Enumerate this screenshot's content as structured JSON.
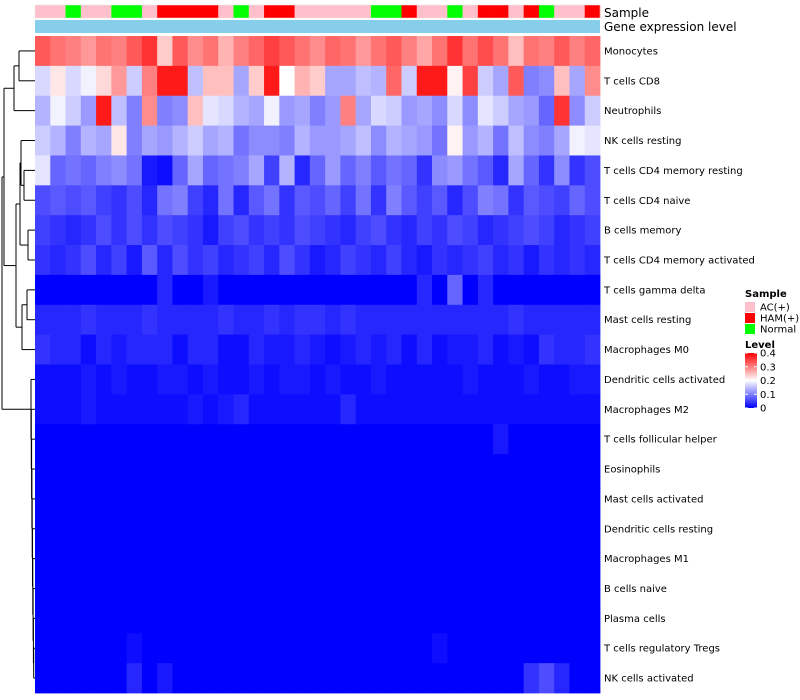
{
  "chart_data": {
    "type": "heatmap",
    "title": "",
    "annotation_labels": [
      "Sample",
      "Gene expression level"
    ],
    "sample_groups": [
      "AC(+)",
      "AC(+)",
      "Normal",
      "AC(+)",
      "AC(+)",
      "Normal",
      "Normal",
      "AC(+)",
      "HAM(+)",
      "HAM(+)",
      "HAM(+)",
      "HAM(+)",
      "AC(+)",
      "Normal",
      "AC(+)",
      "HAM(+)",
      "HAM(+)",
      "AC(+)",
      "AC(+)",
      "AC(+)",
      "AC(+)",
      "AC(+)",
      "Normal",
      "Normal",
      "HAM(+)",
      "AC(+)",
      "AC(+)",
      "Normal",
      "AC(+)",
      "HAM(+)",
      "HAM(+)",
      "AC(+)",
      "HAM(+)",
      "Normal",
      "AC(+)",
      "AC(+)",
      "HAM(+)"
    ],
    "rows": [
      "Monocytes",
      "T cells CD8",
      "Neutrophils",
      "NK cells resting",
      "T cells CD4 memory resting",
      "T cells CD4 naive",
      "B cells memory",
      "T cells CD4 memory activated",
      "T cells gamma delta",
      "Mast cells resting",
      "Macrophages M0",
      "Dendritic cells activated",
      "Macrophages M2",
      "T cells follicular helper",
      "Eosinophils",
      "Mast cells activated",
      "Dendritic cells resting",
      "Macrophages M1",
      "B cells naive",
      "Plasma cells",
      "T cells regulatory  Tregs",
      "NK cells activated"
    ],
    "values": [
      [
        0.33,
        0.31,
        0.3,
        0.28,
        0.31,
        0.3,
        0.33,
        0.36,
        0.24,
        0.33,
        0.29,
        0.31,
        0.26,
        0.3,
        0.32,
        0.35,
        0.33,
        0.31,
        0.29,
        0.32,
        0.31,
        0.28,
        0.31,
        0.33,
        0.3,
        0.27,
        0.31,
        0.36,
        0.31,
        0.34,
        0.31,
        0.25,
        0.31,
        0.3,
        0.33,
        0.3,
        0.32
      ],
      [
        0.17,
        0.22,
        0.17,
        0.19,
        0.23,
        0.28,
        0.16,
        0.3,
        0.38,
        0.38,
        0.15,
        0.25,
        0.25,
        0.13,
        0.24,
        0.38,
        0.2,
        0.26,
        0.24,
        0.13,
        0.13,
        0.15,
        0.14,
        0.32,
        0.16,
        0.38,
        0.38,
        0.21,
        0.35,
        0.16,
        0.13,
        0.33,
        0.1,
        0.11,
        0.25,
        0.13,
        0.29
      ],
      [
        0.14,
        0.19,
        0.16,
        0.12,
        0.38,
        0.15,
        0.1,
        0.29,
        0.1,
        0.11,
        0.25,
        0.18,
        0.17,
        0.14,
        0.13,
        0.19,
        0.12,
        0.13,
        0.1,
        0.12,
        0.3,
        0.13,
        0.17,
        0.16,
        0.12,
        0.13,
        0.11,
        0.17,
        0.11,
        0.18,
        0.16,
        0.13,
        0.12,
        0.08,
        0.36,
        0.11,
        0.16
      ],
      [
        0.16,
        0.14,
        0.1,
        0.14,
        0.13,
        0.22,
        0.1,
        0.13,
        0.12,
        0.14,
        0.16,
        0.13,
        0.14,
        0.09,
        0.11,
        0.11,
        0.1,
        0.14,
        0.12,
        0.12,
        0.13,
        0.15,
        0.11,
        0.14,
        0.13,
        0.12,
        0.09,
        0.21,
        0.12,
        0.14,
        0.09,
        0.15,
        0.11,
        0.1,
        0.13,
        0.19,
        0.18
      ],
      [
        0.18,
        0.08,
        0.09,
        0.08,
        0.1,
        0.11,
        0.09,
        0.02,
        0.01,
        0.08,
        0.13,
        0.08,
        0.09,
        0.1,
        0.13,
        0.05,
        0.14,
        0.03,
        0.08,
        0.12,
        0.08,
        0.1,
        0.07,
        0.09,
        0.08,
        0.04,
        0.11,
        0.12,
        0.09,
        0.07,
        0.03,
        0.13,
        0.08,
        0.04,
        0.11,
        0.04,
        0.06
      ],
      [
        0.06,
        0.07,
        0.06,
        0.07,
        0.05,
        0.04,
        0.06,
        0.03,
        0.09,
        0.1,
        0.05,
        0.03,
        0.09,
        0.03,
        0.07,
        0.09,
        0.04,
        0.07,
        0.06,
        0.08,
        0.05,
        0.09,
        0.04,
        0.1,
        0.07,
        0.05,
        0.07,
        0.03,
        0.06,
        0.1,
        0.09,
        0.04,
        0.07,
        0.06,
        0.05,
        0.08,
        0.06
      ],
      [
        0.05,
        0.04,
        0.03,
        0.04,
        0.06,
        0.04,
        0.06,
        0.04,
        0.06,
        0.05,
        0.04,
        0.02,
        0.05,
        0.06,
        0.04,
        0.05,
        0.04,
        0.06,
        0.05,
        0.04,
        0.03,
        0.05,
        0.06,
        0.04,
        0.03,
        0.05,
        0.04,
        0.06,
        0.05,
        0.03,
        0.04,
        0.05,
        0.06,
        0.05,
        0.03,
        0.04,
        0.05
      ],
      [
        0.04,
        0.03,
        0.04,
        0.06,
        0.03,
        0.05,
        0.02,
        0.07,
        0.03,
        0.06,
        0.04,
        0.05,
        0.03,
        0.04,
        0.05,
        0.03,
        0.06,
        0.04,
        0.02,
        0.03,
        0.05,
        0.04,
        0.03,
        0.05,
        0.03,
        0.02,
        0.04,
        0.03,
        0.04,
        0.05,
        0.03,
        0.04,
        0.02,
        0.04,
        0.03,
        0.04,
        0.03
      ],
      [
        0.0,
        0.0,
        0.0,
        0.0,
        0.0,
        0.0,
        0.0,
        0.0,
        0.03,
        0.0,
        0.0,
        0.02,
        0.0,
        0.0,
        0.0,
        0.0,
        0.0,
        0.0,
        0.0,
        0.0,
        0.0,
        0.0,
        0.0,
        0.0,
        0.0,
        0.03,
        0.0,
        0.08,
        0.0,
        0.03,
        0.0,
        0.0,
        0.0,
        0.0,
        0.0,
        0.0,
        0.0
      ],
      [
        0.03,
        0.03,
        0.03,
        0.04,
        0.03,
        0.03,
        0.03,
        0.04,
        0.03,
        0.03,
        0.03,
        0.03,
        0.04,
        0.03,
        0.03,
        0.04,
        0.03,
        0.04,
        0.04,
        0.03,
        0.04,
        0.03,
        0.03,
        0.03,
        0.03,
        0.03,
        0.03,
        0.03,
        0.03,
        0.03,
        0.03,
        0.04,
        0.03,
        0.03,
        0.03,
        0.03,
        0.03
      ],
      [
        0.04,
        0.03,
        0.03,
        0.01,
        0.03,
        0.02,
        0.03,
        0.03,
        0.03,
        0.01,
        0.03,
        0.03,
        0.01,
        0.01,
        0.03,
        0.02,
        0.02,
        0.03,
        0.02,
        0.01,
        0.02,
        0.03,
        0.02,
        0.03,
        0.01,
        0.03,
        0.01,
        0.02,
        0.02,
        0.03,
        0.01,
        0.02,
        0.01,
        0.04,
        0.03,
        0.03,
        0.04
      ],
      [
        0.01,
        0.01,
        0.01,
        0.02,
        0.01,
        0.02,
        0.01,
        0.01,
        0.02,
        0.02,
        0.01,
        0.02,
        0.01,
        0.01,
        0.02,
        0.01,
        0.02,
        0.02,
        0.01,
        0.02,
        0.01,
        0.01,
        0.02,
        0.01,
        0.01,
        0.01,
        0.01,
        0.01,
        0.02,
        0.01,
        0.01,
        0.01,
        0.02,
        0.01,
        0.01,
        0.02,
        0.02
      ],
      [
        0.01,
        0.01,
        0.01,
        0.02,
        0.01,
        0.01,
        0.01,
        0.01,
        0.01,
        0.01,
        0.02,
        0.01,
        0.02,
        0.03,
        0.01,
        0.01,
        0.01,
        0.01,
        0.01,
        0.01,
        0.03,
        0.01,
        0.01,
        0.01,
        0.01,
        0.01,
        0.01,
        0.01,
        0.01,
        0.01,
        0.01,
        0.01,
        0.01,
        0.01,
        0.01,
        0.01,
        0.01
      ],
      [
        0.0,
        0.0,
        0.0,
        0.0,
        0.0,
        0.0,
        0.0,
        0.0,
        0.0,
        0.0,
        0.0,
        0.0,
        0.0,
        0.0,
        0.0,
        0.0,
        0.0,
        0.0,
        0.0,
        0.0,
        0.0,
        0.0,
        0.0,
        0.0,
        0.0,
        0.0,
        0.0,
        0.0,
        0.0,
        0.0,
        0.02,
        0.0,
        0.0,
        0.0,
        0.0,
        0.0,
        0.0
      ],
      [
        0.0,
        0.0,
        0.0,
        0.0,
        0.0,
        0.0,
        0.0,
        0.0,
        0.0,
        0.0,
        0.0,
        0.0,
        0.0,
        0.0,
        0.0,
        0.0,
        0.0,
        0.0,
        0.0,
        0.0,
        0.0,
        0.0,
        0.0,
        0.0,
        0.0,
        0.0,
        0.0,
        0.0,
        0.0,
        0.0,
        0.0,
        0.0,
        0.0,
        0.0,
        0.0,
        0.0,
        0.0
      ],
      [
        0.0,
        0.0,
        0.0,
        0.0,
        0.0,
        0.0,
        0.0,
        0.0,
        0.0,
        0.0,
        0.0,
        0.0,
        0.0,
        0.0,
        0.0,
        0.0,
        0.0,
        0.0,
        0.0,
        0.0,
        0.0,
        0.0,
        0.0,
        0.0,
        0.0,
        0.0,
        0.0,
        0.0,
        0.0,
        0.0,
        0.0,
        0.0,
        0.0,
        0.0,
        0.0,
        0.0,
        0.0
      ],
      [
        0.0,
        0.0,
        0.0,
        0.0,
        0.0,
        0.0,
        0.0,
        0.0,
        0.0,
        0.0,
        0.0,
        0.0,
        0.0,
        0.0,
        0.0,
        0.0,
        0.0,
        0.0,
        0.0,
        0.0,
        0.0,
        0.0,
        0.0,
        0.0,
        0.0,
        0.0,
        0.0,
        0.0,
        0.0,
        0.0,
        0.0,
        0.0,
        0.0,
        0.0,
        0.0,
        0.0,
        0.0
      ],
      [
        0.0,
        0.0,
        0.0,
        0.0,
        0.0,
        0.0,
        0.0,
        0.0,
        0.0,
        0.0,
        0.0,
        0.0,
        0.0,
        0.0,
        0.0,
        0.0,
        0.0,
        0.0,
        0.0,
        0.0,
        0.0,
        0.0,
        0.0,
        0.0,
        0.0,
        0.0,
        0.0,
        0.0,
        0.0,
        0.0,
        0.0,
        0.0,
        0.0,
        0.0,
        0.0,
        0.0,
        0.0
      ],
      [
        0.0,
        0.0,
        0.0,
        0.0,
        0.0,
        0.0,
        0.0,
        0.0,
        0.0,
        0.0,
        0.0,
        0.0,
        0.0,
        0.0,
        0.0,
        0.0,
        0.0,
        0.0,
        0.0,
        0.0,
        0.0,
        0.0,
        0.0,
        0.0,
        0.0,
        0.0,
        0.0,
        0.0,
        0.0,
        0.0,
        0.0,
        0.0,
        0.0,
        0.0,
        0.0,
        0.0,
        0.0
      ],
      [
        0.0,
        0.0,
        0.0,
        0.0,
        0.0,
        0.0,
        0.0,
        0.0,
        0.0,
        0.0,
        0.0,
        0.0,
        0.0,
        0.0,
        0.0,
        0.0,
        0.0,
        0.0,
        0.0,
        0.0,
        0.0,
        0.0,
        0.0,
        0.0,
        0.0,
        0.0,
        0.0,
        0.0,
        0.0,
        0.0,
        0.0,
        0.0,
        0.0,
        0.0,
        0.0,
        0.0,
        0.0
      ],
      [
        0.0,
        0.0,
        0.0,
        0.0,
        0.0,
        0.0,
        0.01,
        0.0,
        0.0,
        0.0,
        0.0,
        0.0,
        0.0,
        0.0,
        0.0,
        0.0,
        0.0,
        0.0,
        0.0,
        0.0,
        0.0,
        0.0,
        0.0,
        0.0,
        0.0,
        0.0,
        0.01,
        0.0,
        0.0,
        0.0,
        0.0,
        0.0,
        0.0,
        0.0,
        0.0,
        0.0,
        0.0
      ],
      [
        0.0,
        0.0,
        0.0,
        0.0,
        0.0,
        0.0,
        0.03,
        0.0,
        0.02,
        0.0,
        0.0,
        0.0,
        0.0,
        0.0,
        0.0,
        0.0,
        0.0,
        0.0,
        0.0,
        0.0,
        0.0,
        0.0,
        0.0,
        0.0,
        0.0,
        0.0,
        0.0,
        0.0,
        0.0,
        0.0,
        0.0,
        0.0,
        0.04,
        0.06,
        0.03,
        0.0,
        0.0
      ]
    ],
    "color_scale": {
      "min": 0,
      "max": 0.4,
      "low_color": "#0000ff",
      "mid_color": "#ffffff",
      "high_color": "#ff0000",
      "mid_value": 0.2
    },
    "legend": {
      "sample_title": "Sample",
      "sample_entries": [
        {
          "label": "AC(+)",
          "color": "#ffc0cb"
        },
        {
          "label": "HAM(+)",
          "color": "#ff0000"
        },
        {
          "label": "Normal",
          "color": "#00ff00"
        }
      ],
      "level_title": "Level",
      "level_ticks": [
        "0.4",
        "0.3",
        "0.2",
        "0.1",
        "0"
      ],
      "level_tick_values": [
        0.4,
        0.3,
        0.2,
        0.1,
        0
      ],
      "placement": "right"
    },
    "gene_expression_bar_color": "#87ceeb"
  }
}
